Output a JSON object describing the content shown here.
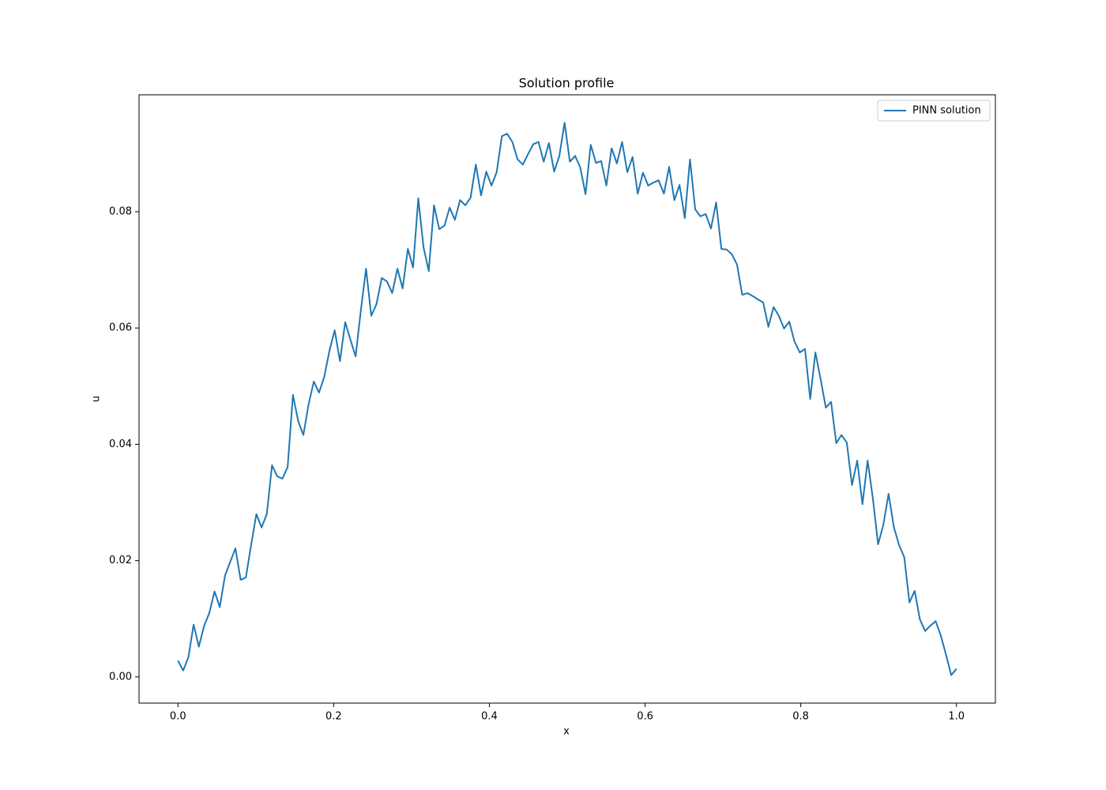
{
  "chart_data": {
    "type": "line",
    "title": "Solution profile",
    "xlabel": "x",
    "ylabel": "u",
    "x": [
      0,
      0.0067,
      0.0134,
      0.0201,
      0.0268,
      0.0336,
      0.0403,
      0.047,
      0.0537,
      0.0604,
      0.0671,
      0.0738,
      0.0805,
      0.0872,
      0.094,
      0.1007,
      0.1074,
      0.1141,
      0.1208,
      0.1275,
      0.1342,
      0.1409,
      0.1477,
      0.1544,
      0.1611,
      0.1678,
      0.1745,
      0.1812,
      0.1879,
      0.1946,
      0.2013,
      0.2081,
      0.2148,
      0.2215,
      0.2282,
      0.2349,
      0.2416,
      0.2483,
      0.255,
      0.2617,
      0.2685,
      0.2752,
      0.2819,
      0.2886,
      0.2953,
      0.302,
      0.3087,
      0.3154,
      0.3221,
      0.3289,
      0.3356,
      0.3423,
      0.349,
      0.3557,
      0.3624,
      0.3691,
      0.3758,
      0.3826,
      0.3893,
      0.396,
      0.4027,
      0.4094,
      0.4161,
      0.4228,
      0.4295,
      0.4362,
      0.443,
      0.4497,
      0.4564,
      0.4631,
      0.4698,
      0.4765,
      0.4832,
      0.4899,
      0.4966,
      0.5034,
      0.5101,
      0.5168,
      0.5235,
      0.5302,
      0.5369,
      0.5436,
      0.5503,
      0.557,
      0.5638,
      0.5705,
      0.5772,
      0.5839,
      0.5906,
      0.5973,
      0.604,
      0.6107,
      0.6174,
      0.6242,
      0.6309,
      0.6376,
      0.6443,
      0.651,
      0.6577,
      0.6644,
      0.6711,
      0.6779,
      0.6846,
      0.6913,
      0.698,
      0.7047,
      0.7114,
      0.7181,
      0.7248,
      0.7315,
      0.7383,
      0.745,
      0.7517,
      0.7584,
      0.7651,
      0.7718,
      0.7785,
      0.7852,
      0.7919,
      0.7987,
      0.8054,
      0.8121,
      0.8188,
      0.8255,
      0.8322,
      0.8389,
      0.8456,
      0.8523,
      0.8591,
      0.8658,
      0.8725,
      0.8792,
      0.8859,
      0.8926,
      0.8993,
      0.906,
      0.9128,
      0.9195,
      0.9262,
      0.9329,
      0.9396,
      0.9463,
      0.953,
      0.9597,
      0.9664,
      0.9732,
      0.9799,
      0.9866,
      0.9933,
      1.0
    ],
    "series": [
      {
        "name": "PINN solution",
        "color": "#1f77b4",
        "values": [
          0.0028,
          0.0011,
          0.0034,
          0.009,
          0.0052,
          0.0088,
          0.011,
          0.0147,
          0.012,
          0.0174,
          0.0198,
          0.0221,
          0.0167,
          0.0171,
          0.0227,
          0.028,
          0.0257,
          0.028,
          0.0364,
          0.0345,
          0.0341,
          0.0361,
          0.0485,
          0.044,
          0.0416,
          0.0469,
          0.0508,
          0.0489,
          0.0516,
          0.0561,
          0.0596,
          0.0543,
          0.061,
          0.058,
          0.0551,
          0.063,
          0.0702,
          0.0621,
          0.0641,
          0.0686,
          0.068,
          0.066,
          0.0702,
          0.0668,
          0.0736,
          0.0704,
          0.0823,
          0.0739,
          0.0698,
          0.0811,
          0.077,
          0.0776,
          0.0807,
          0.0786,
          0.082,
          0.0811,
          0.0824,
          0.0881,
          0.0828,
          0.0869,
          0.0845,
          0.0868,
          0.093,
          0.0934,
          0.092,
          0.089,
          0.0881,
          0.0899,
          0.0916,
          0.092,
          0.0886,
          0.0918,
          0.0869,
          0.0896,
          0.0953,
          0.0886,
          0.0896,
          0.0876,
          0.083,
          0.0915,
          0.0884,
          0.0887,
          0.0845,
          0.0909,
          0.0883,
          0.092,
          0.0868,
          0.0894,
          0.0831,
          0.0867,
          0.0845,
          0.085,
          0.0854,
          0.0831,
          0.0877,
          0.082,
          0.0846,
          0.0789,
          0.089,
          0.0804,
          0.0792,
          0.0796,
          0.0771,
          0.0816,
          0.0736,
          0.0735,
          0.0727,
          0.0709,
          0.0657,
          0.066,
          0.0655,
          0.0649,
          0.0644,
          0.0602,
          0.0636,
          0.0621,
          0.0599,
          0.0611,
          0.0577,
          0.0558,
          0.0564,
          0.0478,
          0.0558,
          0.0512,
          0.0463,
          0.0473,
          0.0402,
          0.0416,
          0.0403,
          0.033,
          0.0372,
          0.0297,
          0.0372,
          0.0307,
          0.0228,
          0.0261,
          0.0315,
          0.0258,
          0.0227,
          0.0206,
          0.0128,
          0.0148,
          0.0099,
          0.0079,
          0.0088,
          0.0096,
          0.0071,
          0.0038,
          0.0003,
          0.0014
        ]
      }
    ],
    "xlim": [
      -0.05,
      1.05
    ],
    "xticks": [
      {
        "value": 0,
        "label": "0.0"
      },
      0.2,
      0.4,
      0.6,
      0.8,
      {
        "value": 1,
        "label": "1.0"
      }
    ],
    "ylim": [
      -0.0045,
      0.1001
    ],
    "yticks": [
      {
        "value": 0,
        "label": "0.00"
      },
      0.02,
      0.04,
      0.06,
      0.08
    ],
    "grid": false,
    "legend": "upper right"
  }
}
